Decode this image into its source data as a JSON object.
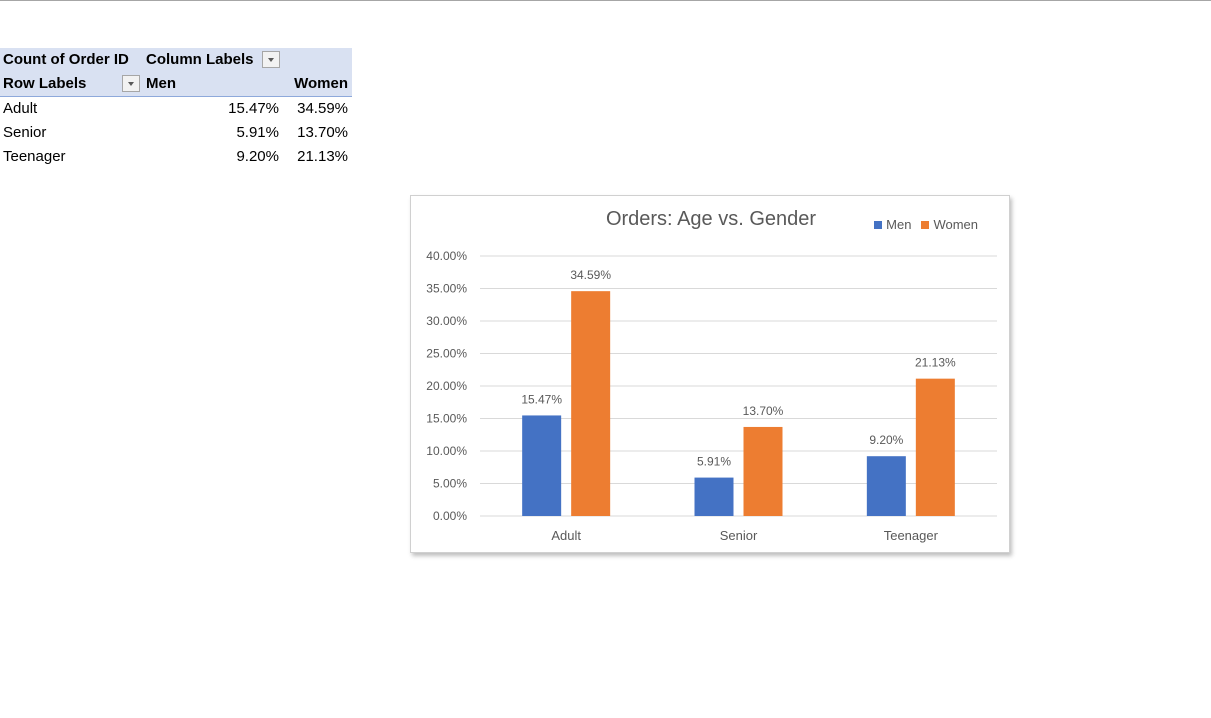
{
  "pivot": {
    "header1": {
      "measure": "Count of Order ID",
      "columns": "Column Labels"
    },
    "header2": {
      "rows": "Row Labels",
      "men": "Men",
      "women": "Women"
    },
    "rows": [
      {
        "label": "Adult",
        "men": "15.47%",
        "women": "34.59%"
      },
      {
        "label": "Senior",
        "men": "5.91%",
        "women": "13.70%"
      },
      {
        "label": "Teenager",
        "men": "9.20%",
        "women": "21.13%"
      }
    ]
  },
  "colors": {
    "men": "#4472c4",
    "women": "#ed7d31",
    "grid": "#d9d9d9",
    "text": "#595959"
  },
  "chart_data": {
    "type": "bar",
    "title": "Orders: Age vs. Gender",
    "categories": [
      "Adult",
      "Senior",
      "Teenager"
    ],
    "series": [
      {
        "name": "Men",
        "values": [
          15.47,
          5.91,
          9.2
        ],
        "labels": [
          "15.47%",
          "5.91%",
          "9.20%"
        ]
      },
      {
        "name": "Women",
        "values": [
          34.59,
          13.7,
          21.13
        ],
        "labels": [
          "34.59%",
          "13.70%",
          "21.13%"
        ]
      }
    ],
    "yticks": [
      "0.00%",
      "5.00%",
      "10.00%",
      "15.00%",
      "20.00%",
      "25.00%",
      "30.00%",
      "35.00%",
      "40.00%"
    ],
    "ylim": [
      0,
      40
    ],
    "grid": true,
    "legend": "top-right"
  }
}
